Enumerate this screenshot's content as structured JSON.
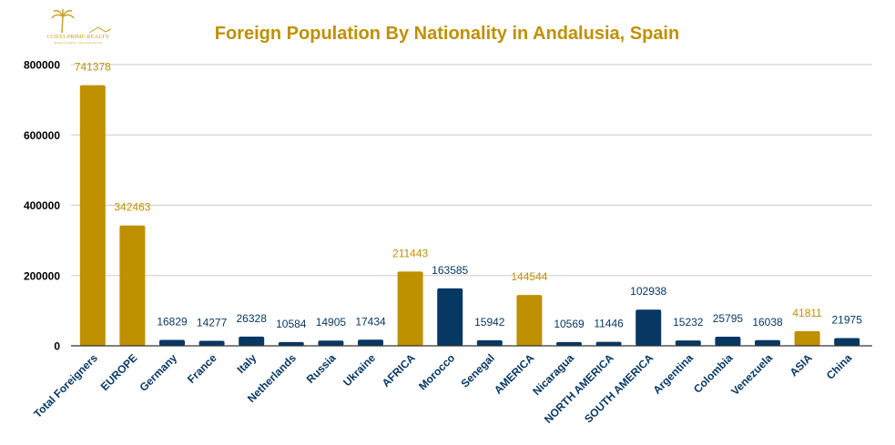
{
  "logo": {
    "name": "COSTA PRIME REALTY",
    "tagline": "Property Experts - The Costa Del Sol"
  },
  "chart_data": {
    "type": "bar",
    "title": "Foreign Population By Nationality in Andalusia, Spain",
    "xlabel": "",
    "ylabel": "",
    "ylim": [
      0,
      800000
    ],
    "yticks": [
      0,
      200000,
      400000,
      600000,
      800000
    ],
    "grid": true,
    "categories": [
      "Total Foreigners",
      "EUROPE",
      "Germany",
      "France",
      "Italy",
      "Netherlands",
      "Russia",
      "Ukraine",
      "AFRICA",
      "Morocco",
      "Senegal",
      "AMERICA",
      "Nicaragua",
      "NORTH AMERICA",
      "SOUTH AMERICA",
      "Argentina",
      "Colombia",
      "Venezuela",
      "ASIA",
      "China"
    ],
    "values": [
      741378,
      342463,
      16829,
      14277,
      26328,
      10584,
      14905,
      17434,
      211443,
      163585,
      15942,
      144544,
      10569,
      11446,
      102938,
      15232,
      25795,
      16038,
      41811,
      21975
    ],
    "highlighted": [
      true,
      true,
      false,
      false,
      false,
      false,
      false,
      false,
      true,
      false,
      false,
      true,
      false,
      false,
      false,
      false,
      false,
      false,
      true,
      false
    ],
    "colors": {
      "highlight": "#BF9000",
      "default": "#073763",
      "title": "#BF9000",
      "grid": "#CCCCCC"
    }
  }
}
